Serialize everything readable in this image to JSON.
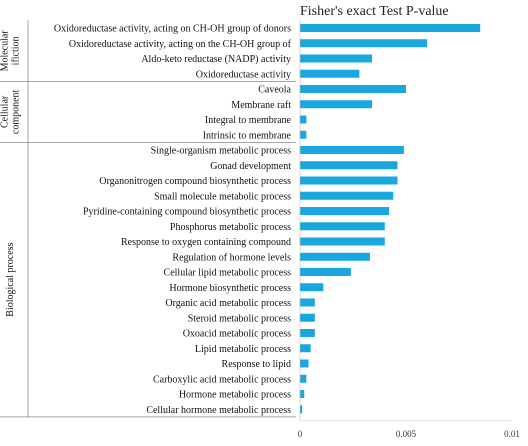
{
  "chart_data": {
    "type": "bar",
    "orientation": "horizontal",
    "title": "Fisher's exact Test P-value",
    "xlabel": "",
    "ylabel": "",
    "xlim": [
      0,
      0.01
    ],
    "x_ticks": [
      "0",
      "0.005",
      "0.01"
    ],
    "x_tick_values": [
      0,
      0.005,
      0.01
    ],
    "grid": false,
    "bar_color": "#1aa7e0",
    "groups": [
      {
        "name": "Molecular function",
        "label_lines": [
          "Molecular",
          "ifiction"
        ],
        "start": 0,
        "end": 3
      },
      {
        "name": "Cellular component",
        "label_lines": [
          "Cellular",
          "component"
        ],
        "start": 4,
        "end": 7
      },
      {
        "name": "Biological process",
        "label_lines": [
          "Biological process"
        ],
        "start": 8,
        "end": 25
      }
    ],
    "categories": [
      "Oxidoreductase activity, acting on CH-OH group of donors",
      "Oxidoreductase activity, acting on the CH-OH group of",
      "Aldo-keto reductase (NADP) activity",
      "Oxidoreductase activity",
      "Caveola",
      "Membrane raft",
      "Integral to membrane",
      "Intrinsic to membrane",
      "Single-organism metabolic process",
      "Gonad development",
      "Organonitrogen compound biosynthetic process",
      "Small molecule metabolic process",
      "Pyridine-containing compound biosynthetic process",
      "Phosphorus metabolic process",
      "Response to oxygen containing compound",
      "Regulation of hormone levels",
      "Cellular lipid metabolic process",
      "Hormone biosynthetic process",
      "Organic acid metabolic process",
      "Steroid metabolic process",
      "Oxoacid metabolic process",
      "Lipid metabolic process",
      "Response to lipid",
      "Carboxylic acid metabolic process",
      "Hormone metabolic process",
      "Cellular hormone metabolic process"
    ],
    "values": [
      0.0085,
      0.006,
      0.0034,
      0.0028,
      0.005,
      0.0034,
      0.0003,
      0.0003,
      0.0049,
      0.0046,
      0.0046,
      0.0044,
      0.0042,
      0.004,
      0.004,
      0.0033,
      0.0024,
      0.0011,
      0.0007,
      0.0007,
      0.0007,
      0.0005,
      0.0004,
      0.0003,
      0.0002,
      0.0001
    ]
  }
}
